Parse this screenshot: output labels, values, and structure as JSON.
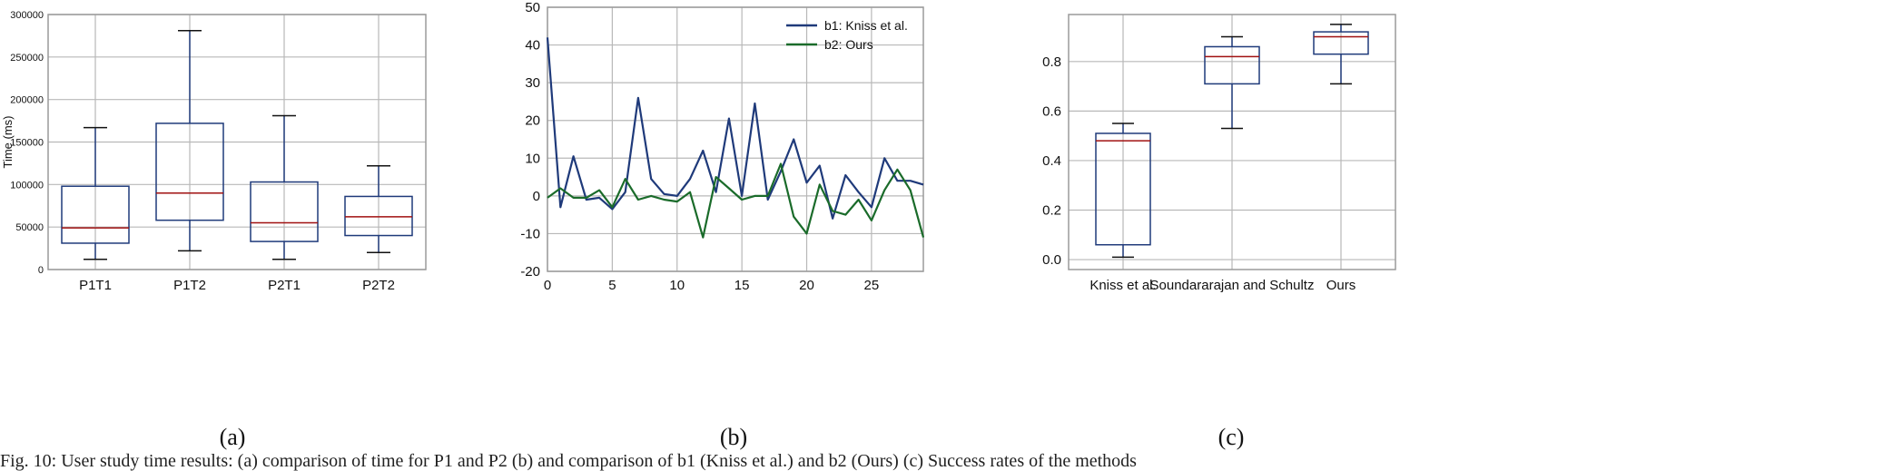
{
  "chart_data": [
    {
      "id": "a",
      "type": "box",
      "caption": "(a)",
      "title": "",
      "xlabel": "",
      "ylabel": "Time (ms)",
      "categories": [
        "P1T1",
        "P1T2",
        "P2T1",
        "P2T2"
      ],
      "boxes": [
        {
          "whislo": 12000,
          "q1": 31000,
          "med": 49000,
          "q3": 98000,
          "whishi": 167000
        },
        {
          "whislo": 22000,
          "q1": 58000,
          "med": 90000,
          "q3": 172000,
          "whishi": 281000
        },
        {
          "whislo": 12000,
          "q1": 33000,
          "med": 55000,
          "q3": 103000,
          "whishi": 181000
        },
        {
          "whislo": 20000,
          "q1": 40000,
          "med": 62000,
          "q3": 86000,
          "whishi": 122000
        }
      ],
      "ylim": [
        0,
        300000
      ],
      "yticks": [
        0,
        50000,
        100000,
        150000,
        200000,
        250000,
        300000
      ],
      "grid": true
    },
    {
      "id": "b",
      "type": "line",
      "caption": "(b)",
      "title": "",
      "xlabel": "",
      "ylabel": "",
      "x": [
        0,
        1,
        2,
        3,
        4,
        5,
        6,
        7,
        8,
        9,
        10,
        11,
        12,
        13,
        14,
        15,
        16,
        17,
        18,
        19,
        20,
        21,
        22,
        23,
        24,
        25,
        26,
        27,
        28,
        29
      ],
      "series": [
        {
          "name": "b1: Kniss et al.",
          "color": "#1f3a7a",
          "values": [
            42,
            -3,
            10.5,
            -1,
            -0.5,
            -3.5,
            1,
            26,
            4.5,
            0.5,
            0,
            4.5,
            12,
            1,
            20.5,
            0,
            24.5,
            -1,
            6.5,
            15,
            3.5,
            8,
            -6,
            5.5,
            1,
            -3,
            10,
            4,
            4,
            3
          ]
        },
        {
          "name": "b2: Ours",
          "color": "#1a6b2a",
          "values": [
            -0.5,
            2,
            -0.5,
            -0.5,
            1.5,
            -3,
            4.5,
            -1,
            0,
            -1,
            -1.5,
            1,
            -11,
            5,
            2,
            -1,
            0,
            0,
            8.5,
            -5.5,
            -10,
            3,
            -4,
            -5,
            -1,
            -6.5,
            1.5,
            7,
            1.5,
            -11
          ]
        }
      ],
      "xlim": [
        0,
        29
      ],
      "ylim": [
        -20,
        50
      ],
      "xticks": [
        0,
        5,
        10,
        15,
        20,
        25
      ],
      "yticks": [
        -20,
        -10,
        0,
        10,
        20,
        30,
        40,
        50
      ],
      "legend": "top-right",
      "grid": true
    },
    {
      "id": "c",
      "type": "box",
      "caption": "(c)",
      "title": "",
      "xlabel": "",
      "ylabel": "",
      "categories": [
        "Kniss et al.",
        "Soundararajan and Schultz",
        "Ours"
      ],
      "boxes": [
        {
          "whislo": 0.01,
          "q1": 0.06,
          "med": 0.48,
          "q3": 0.51,
          "whishi": 0.55
        },
        {
          "whislo": 0.53,
          "q1": 0.71,
          "med": 0.82,
          "q3": 0.86,
          "whishi": 0.9
        },
        {
          "whislo": 0.71,
          "q1": 0.83,
          "med": 0.9,
          "q3": 0.92,
          "whishi": 0.95
        }
      ],
      "ylim": [
        -0.04,
        0.99
      ],
      "yticks": [
        0.0,
        0.2,
        0.4,
        0.6,
        0.8
      ],
      "grid": true
    }
  ],
  "footer_text": "Fig. 10: User study time results: (a) comparison of time for P1 and P2 (b) and comparison of b1 (Kniss et al.) and b2 (Ours) (c) Success rates of the methods"
}
